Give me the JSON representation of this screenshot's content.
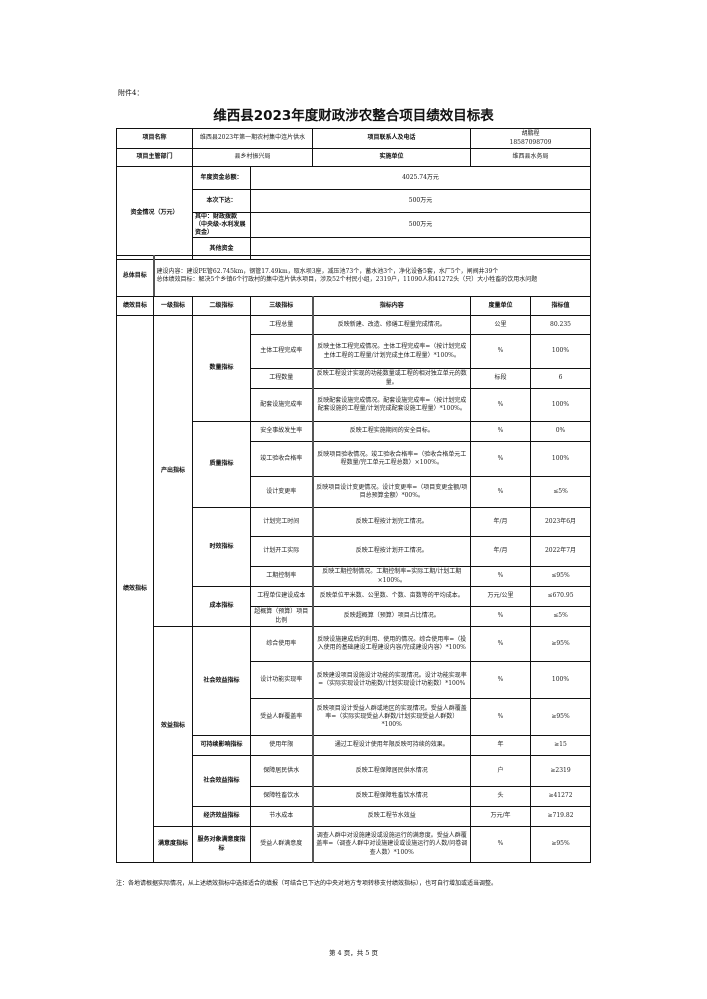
{
  "attachment_label": "附件4：",
  "title": "维西县2023年度财政涉农整合项目绩效目标表",
  "project": {
    "name_label": "项目名称",
    "name": "维西县2023年第一期农村集中连片供水",
    "contact_label": "项目联系人及电话",
    "contact_name": "胡鹏程",
    "contact_phone": "18587098709",
    "dept_label": "项目主管部门",
    "dept": "县乡村振兴局",
    "impl_label": "实施单位",
    "impl": "维西县水务局"
  },
  "funds": {
    "label": "资金情况（万元）",
    "rows": [
      {
        "label": "年度资金总额：",
        "value": "4025.74万元"
      },
      {
        "label": "本次下达：",
        "value": "500万元"
      },
      {
        "label": "其中：财政拨款（中央级-水利发展资金）",
        "value": "500万元"
      },
      {
        "label": "其他资金",
        "value": ""
      }
    ]
  },
  "overall": {
    "label": "总体目标",
    "line1": "建设内容：建设PE管62.745km，钢管17.49km，取水坝3座，减压池73个，蓄水池3个，净化设备5套，水厂5个，闸阀井39个",
    "line2": "总体绩效目标：解决5个乡镇6个行政村的集中连片供水项目，涉及52个村民小组，2319户，11090人和41272头（只）大小牲畜的饮用水问题"
  },
  "metrics_header": [
    "绩效目标",
    "一级指标",
    "二级指标",
    "三级指标",
    "指标内容",
    "度量单位",
    "指标值"
  ],
  "metrics_root": "绩效指标",
  "level1": [
    {
      "name": "产出指标",
      "level2": [
        {
          "name": "数量指标",
          "items": [
            {
              "name": "工程总量",
              "content": "反映新建、改造、修缮工程量完成情况。",
              "unit": "公里",
              "value": "80.235"
            },
            {
              "name": "主体工程完成率",
              "content": "反映主体工程完成情况。主体工程完成率=（按计划完成主体工程的工程量/计划完成主体工程量）*100%。",
              "unit": "%",
              "value": "100%"
            },
            {
              "name": "工程数量",
              "content": "反映工程设计实现的功能数量或工程的相对独立单元的数量。",
              "unit": "标段",
              "value": "6"
            },
            {
              "name": "配套设施完成率",
              "content": "反映配套设施完成情况。配套设施完成率=（按计划完成配套设施的工程量/计划完成配套设施工程量）*100%。",
              "unit": "%",
              "value": "100%"
            }
          ]
        },
        {
          "name": "质量指标",
          "items": [
            {
              "name": "安全事故发生率",
              "content": "反映工程实施期间的安全目标。",
              "unit": "%",
              "value": "0%"
            },
            {
              "name": "竣工验收合格率",
              "content": "反映项目验收情况。竣工验收合格率=（验收合格单元工程数量/完工单元工程总数）×100%。",
              "unit": "%",
              "value": "100%"
            },
            {
              "name": "设计变更率",
              "content": "反映项目设计变更情况。设计变更率=（项目变更金额/项目总预算金额）*00%。",
              "unit": "%",
              "value": "≤5%"
            }
          ]
        },
        {
          "name": "时效指标",
          "items": [
            {
              "name": "计划完工时间",
              "content": "反映工程按计划完工情况。",
              "unit": "年/月",
              "value": "2023年6月"
            },
            {
              "name": "计划开工实际",
              "content": "反映工程按计划开工情况。",
              "unit": "年/月",
              "value": "2022年7月"
            },
            {
              "name": "工期控制率",
              "content": "反映工期控制情况。工期控制率=实际工期/计划工期×100%。",
              "unit": "%",
              "value": "≤95%"
            }
          ]
        },
        {
          "name": "成本指标",
          "items": [
            {
              "name": "工程单位建设成本",
              "content": "反映单位平米数、公里数、个数、亩数等的平均成本。",
              "unit": "万元/公里",
              "value": "≤670.95"
            },
            {
              "name": "超概算（预算）项目比例",
              "content": "反映超概算（预算）项目占比情况。",
              "unit": "%",
              "value": "≤5%"
            }
          ]
        }
      ]
    },
    {
      "name": "效益指标",
      "level2": [
        {
          "name": "社会效益指标",
          "items": [
            {
              "name": "综合使用率",
              "content": "反映设施建成后的利用、使用的情况。综合使用率=（投入使用的基础建设工程建设内容/完成建设内容）*100%",
              "unit": "%",
              "value": "≥95%"
            },
            {
              "name": "设计功能实现率",
              "content": "反映建设项目设施设计功能的实现情况。设计功能实现率=（实际实现设计功能数/计划实现设计功能数）*100%",
              "unit": "%",
              "value": "100%"
            },
            {
              "name": "受益人群覆盖率",
              "content": "反映项目设计受益人群或地区的实现情况。受益人群覆盖率=（实际实现受益人群数/计划实现受益人群数）*100%",
              "unit": "%",
              "value": "≥95%"
            }
          ]
        },
        {
          "name": "可持续影响指标",
          "items": [
            {
              "name": "使用年限",
              "content": "通过工程设计使用年限反映可持续的效果。",
              "unit": "年",
              "value": "≥15"
            }
          ]
        },
        {
          "name": "社会效益指标",
          "items": [
            {
              "name": "保障居民供水",
              "content": "反映工程保障居民供水情况",
              "unit": "户",
              "value": "≥2319"
            },
            {
              "name": "保障牲畜饮水",
              "content": "反映工程保障牲畜饮水情况",
              "unit": "头",
              "value": "≥41272"
            }
          ]
        },
        {
          "name": "经济效益指标",
          "items": [
            {
              "name": "节水成本",
              "content": "反映工程节水效益",
              "unit": "万元/年",
              "value": "≥719.82"
            }
          ]
        }
      ]
    },
    {
      "name": "满意度指标",
      "level2": [
        {
          "name": "服务对象满意度指标",
          "items": [
            {
              "name": "受益人群满意度",
              "content": "调查人群中对设施建设或设施运行的满意度。受益人群覆盖率=（调查人群中对设施建设或设施运行的人数/问卷调查人数）*100%",
              "unit": "%",
              "value": "≥95%"
            }
          ]
        }
      ]
    }
  ],
  "note": "注：各地请根据实际情况，从上述绩效指标中选择适合的填报（可结合已下达的中央对地方专项转移支付绩效指标），也可自行增加或适当调整。",
  "page_number": "第 4 页，共 5 页"
}
